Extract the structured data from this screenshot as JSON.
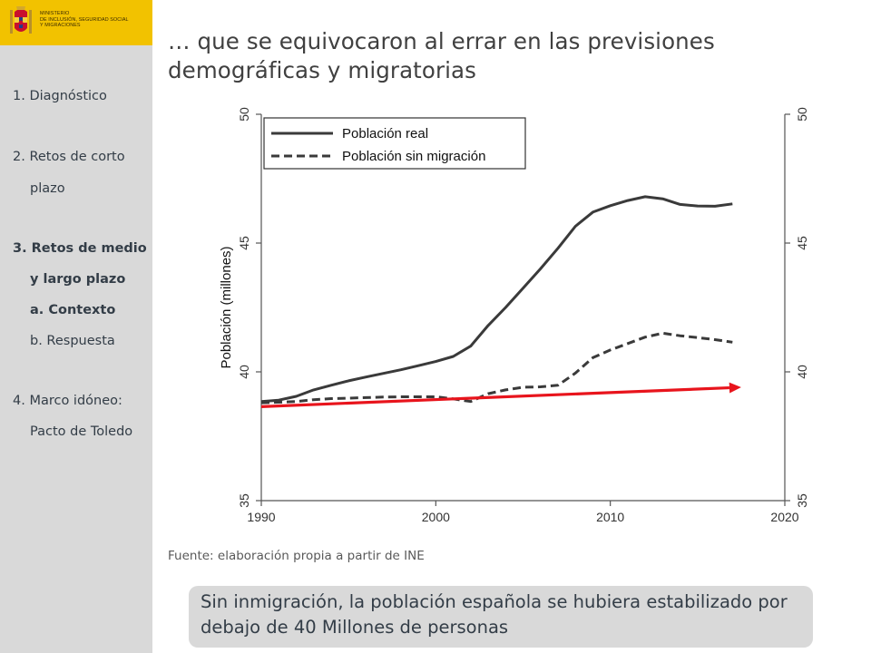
{
  "ministry": {
    "lines": [
      "MINISTERIO",
      "DE INCLUSIÓN, SEGURIDAD SOCIAL",
      "Y MIGRACIONES"
    ],
    "brand_color": "#f2c200"
  },
  "sidebar": {
    "background": "#d9d9d9",
    "items": [
      {
        "label": "1. Diagnóstico"
      },
      {
        "label": "2. Retos de corto"
      },
      {
        "label": "plazo"
      },
      {
        "label": "3. Retos de medio"
      },
      {
        "label": "y largo plazo"
      },
      {
        "label": "a. Contexto"
      },
      {
        "label": "b. Respuesta"
      },
      {
        "label": "4. Marco idóneo:"
      },
      {
        "label": "Pacto de Toledo"
      }
    ]
  },
  "title": "… que se equivocaron al errar en las previsiones demográficas y migratorias",
  "source": "Fuente: elaboración propia a partir de INE",
  "conclusion": "Sin inmigración, la población española se hubiera estabilizado por debajo de 40 Millones de personas",
  "chart_data": {
    "type": "line",
    "title": "",
    "xlabel": "",
    "ylabel": "Población (millones)",
    "xlim": [
      1990,
      2020
    ],
    "ylim": [
      35,
      50
    ],
    "xticks": [
      1990,
      2000,
      2010,
      2020
    ],
    "yticks": [
      35,
      40,
      45,
      50
    ],
    "legend_position": "top-left",
    "grid": false,
    "series": [
      {
        "name": "Población real",
        "style": "solid",
        "color": "#3a3a3a",
        "x": [
          1990,
          1991,
          1992,
          1993,
          1994,
          1995,
          1996,
          1997,
          1998,
          1999,
          2000,
          2001,
          2002,
          2003,
          2004,
          2005,
          2006,
          2007,
          2008,
          2009,
          2010,
          2011,
          2012,
          2013,
          2014,
          2015,
          2016,
          2017
        ],
        "values": [
          38.85,
          38.9,
          39.05,
          39.3,
          39.48,
          39.65,
          39.8,
          39.94,
          40.08,
          40.24,
          40.4,
          40.6,
          41.0,
          41.8,
          42.5,
          43.25,
          44.0,
          44.8,
          45.65,
          46.2,
          46.45,
          46.65,
          46.8,
          46.72,
          46.5,
          46.44,
          46.43,
          46.52
        ]
      },
      {
        "name": "Población sin migración",
        "style": "dashed",
        "color": "#3a3a3a",
        "x": [
          1990,
          1991,
          1992,
          1993,
          1994,
          1995,
          1996,
          1997,
          1998,
          1999,
          2000,
          2001,
          2002,
          2003,
          2004,
          2005,
          2006,
          2007,
          2008,
          2009,
          2010,
          2011,
          2012,
          2013,
          2014,
          2015,
          2016,
          2017
        ],
        "values": [
          38.8,
          38.82,
          38.85,
          38.92,
          38.96,
          38.98,
          39.0,
          39.02,
          39.03,
          39.03,
          39.03,
          38.95,
          38.85,
          39.15,
          39.3,
          39.4,
          39.42,
          39.48,
          39.95,
          40.55,
          40.85,
          41.1,
          41.35,
          41.5,
          41.4,
          41.33,
          41.25,
          41.15
        ]
      }
    ],
    "annotations": [
      {
        "type": "arrow",
        "color": "#e8141c",
        "x": [
          1990,
          2017.5
        ],
        "values": [
          38.65,
          39.4
        ]
      }
    ]
  }
}
